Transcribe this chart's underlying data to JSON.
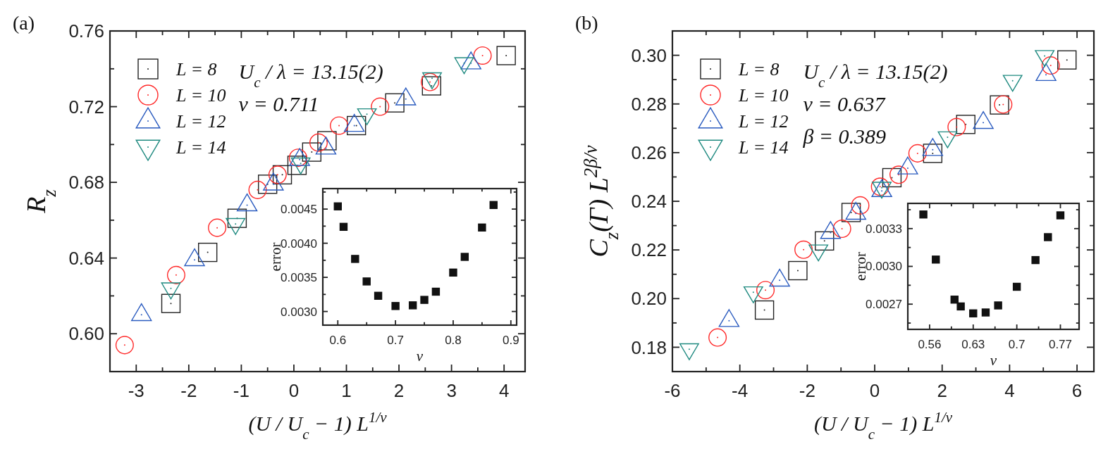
{
  "chart_data": [
    {
      "type": "scatter",
      "title": "(a)",
      "xlabel": "(U / U$_{c}$ − 1) L$^{1/ν}$",
      "ylabel": "R$_{z}$",
      "xlim": [
        -3.5,
        4.4
      ],
      "ylim": [
        0.58,
        0.76
      ],
      "xticks": [
        -3,
        {
          "value": -2.5,
          "label": null
        },
        -2,
        {
          "value": -1.5,
          "label": null
        },
        -1,
        {
          "value": -0.5,
          "label": null
        },
        0,
        {
          "value": 0.5,
          "label": null
        },
        1,
        {
          "value": 1.5,
          "label": null
        },
        2,
        {
          "value": 2.5,
          "label": null
        },
        3,
        {
          "value": 3.5,
          "label": null
        },
        4
      ],
      "yticks": [
        {
          "value": 0.6,
          "label": "0.60"
        },
        {
          "value": 0.62,
          "label": null
        },
        {
          "value": 0.64,
          "label": "0.64"
        },
        {
          "value": 0.66,
          "label": null
        },
        {
          "value": 0.68,
          "label": "0.68"
        },
        {
          "value": 0.7,
          "label": null
        },
        {
          "value": 0.72,
          "label": "0.72"
        },
        {
          "value": 0.74,
          "label": null
        },
        {
          "value": 0.76,
          "label": "0.76"
        }
      ],
      "grid": false,
      "legend": "top left",
      "annotations": [
        "U$_{c}$ / λ = 13.15(2)",
        "ν = 0.711"
      ],
      "series": [
        {
          "name": "L = 8",
          "color": "#222222",
          "marker": "square",
          "x": [
            -2.34,
            -1.64,
            -1.08,
            -0.5,
            -0.22,
            0.06,
            0.34,
            0.63,
            1.19,
            1.92,
            2.62,
            4.04
          ],
          "values": [
            0.616,
            0.643,
            0.661,
            0.679,
            0.684,
            0.689,
            0.696,
            0.702,
            0.71,
            0.722,
            0.731,
            0.747
          ]
        },
        {
          "name": "L = 10",
          "color": "#ff2a2a",
          "marker": "circle",
          "x": [
            -3.22,
            -2.24,
            -1.46,
            -0.69,
            -0.31,
            0.08,
            0.47,
            0.86,
            1.64,
            2.59,
            3.59
          ],
          "values": [
            0.594,
            0.631,
            0.656,
            0.676,
            0.684,
            0.693,
            0.701,
            0.71,
            0.72,
            0.733,
            0.747
          ]
        },
        {
          "name": "L = 12",
          "color": "#2a5bbf",
          "marker": "triangle",
          "x": [
            -2.9,
            -1.89,
            -0.89,
            -0.39,
            0.11,
            0.61,
            1.15,
            2.13,
            3.37
          ],
          "values": [
            0.61,
            0.639,
            0.668,
            0.679,
            0.692,
            0.698,
            0.71,
            0.724,
            0.743
          ]
        },
        {
          "name": "L = 14",
          "color": "#1f8a80",
          "marker": "triangle-down",
          "x": [
            -2.34,
            -1.11,
            0.13,
            1.39,
            2.63,
            3.24
          ],
          "values": [
            0.624,
            0.658,
            0.69,
            0.716,
            0.735,
            0.743
          ]
        }
      ]
    },
    {
      "type": "scatter",
      "xlabel": "ν",
      "ylabel": "error",
      "xlim": [
        0.574,
        0.91
      ],
      "ylim": [
        0.0028,
        0.0048
      ],
      "marker": "square",
      "grid": false,
      "xticks": [
        0.6,
        {
          "value": 0.65,
          "label": null
        },
        0.7,
        {
          "value": 0.75,
          "label": null
        },
        0.8,
        {
          "value": 0.85,
          "label": null
        },
        0.9
      ],
      "yticks": [
        {
          "value": 0.003,
          "label": "0.0030"
        },
        {
          "value": 0.00325,
          "label": null
        },
        {
          "value": 0.0035,
          "label": "0.0035"
        },
        {
          "value": 0.00375,
          "label": null
        },
        {
          "value": 0.004,
          "label": "0.0040"
        },
        {
          "value": 0.00425,
          "label": null
        },
        {
          "value": 0.0045,
          "label": "0.0045"
        },
        {
          "value": 0.00475,
          "label": null
        }
      ],
      "series": [
        {
          "color": "#111111",
          "x": [
            0.6,
            0.61,
            0.63,
            0.65,
            0.67,
            0.7,
            0.73,
            0.75,
            0.77,
            0.8,
            0.82,
            0.85,
            0.87
          ],
          "values": [
            0.00454,
            0.00424,
            0.00377,
            0.00344,
            0.00323,
            0.00308,
            0.00309,
            0.00317,
            0.00329,
            0.00357,
            0.0038,
            0.00423,
            0.00456
          ]
        }
      ]
    },
    {
      "type": "scatter",
      "title": "(b)",
      "xlabel": "(U / U$_{c}$ − 1) L$^{1/ν}$",
      "ylabel": "C$_{z}$(Γ) L$^{2β/ν}$",
      "xlim": [
        -6,
        6.5
      ],
      "ylim": [
        0.17,
        0.31
      ],
      "xticks": [
        -6,
        {
          "value": -5,
          "label": null
        },
        -4,
        {
          "value": -3,
          "label": null
        },
        -2,
        {
          "value": -1,
          "label": null
        },
        0,
        {
          "value": 1,
          "label": null
        },
        2,
        {
          "value": 3,
          "label": null
        },
        4,
        {
          "value": 5,
          "label": null
        },
        6
      ],
      "yticks": [
        {
          "value": 0.18,
          "label": "0.18"
        },
        {
          "value": 0.19,
          "label": null
        },
        {
          "value": 0.2,
          "label": "0.20"
        },
        {
          "value": 0.21,
          "label": null
        },
        {
          "value": 0.22,
          "label": "0.22"
        },
        {
          "value": 0.23,
          "label": null
        },
        {
          "value": 0.24,
          "label": "0.24"
        },
        {
          "value": 0.25,
          "label": null
        },
        {
          "value": 0.26,
          "label": "0.26"
        },
        {
          "value": 0.27,
          "label": null
        },
        {
          "value": 0.28,
          "label": "0.28"
        },
        {
          "value": 0.29,
          "label": null
        },
        {
          "value": 0.3,
          "label": "0.30"
        }
      ],
      "grid": false,
      "legend": "top left",
      "annotations": [
        "U$_{c}$ / λ = 13.15(2)",
        "ν = 0.637",
        "β = 0.389"
      ],
      "series": [
        {
          "name": "L = 8",
          "color": "#222222",
          "marker": "square",
          "x": [
            -3.27,
            -2.28,
            -1.49,
            -0.7,
            0.51,
            1.72,
            2.7,
            3.7,
            5.7
          ],
          "values": [
            0.1953,
            0.2115,
            0.2237,
            0.2354,
            0.2497,
            0.2597,
            0.2716,
            0.2796,
            0.2981
          ]
        },
        {
          "name": "L = 10",
          "color": "#ff2a2a",
          "marker": "circle",
          "x": [
            -4.66,
            -3.24,
            -2.11,
            -0.97,
            -0.43,
            0.16,
            0.71,
            1.27,
            2.43,
            3.81,
            5.22
          ],
          "values": [
            0.184,
            0.2035,
            0.2201,
            0.2287,
            0.2383,
            0.246,
            0.2509,
            0.2597,
            0.2705,
            0.2798,
            0.2958
          ]
        },
        {
          "name": "L = 12",
          "color": "#2a5bbf",
          "marker": "triangle",
          "x": [
            -4.32,
            -2.82,
            -1.31,
            -0.56,
            0.21,
            0.98,
            1.72,
            3.22,
            5.08
          ],
          "values": [
            0.1909,
            0.2075,
            0.2271,
            0.235,
            0.2443,
            0.2536,
            0.2612,
            0.2723,
            0.292
          ]
        },
        {
          "name": "L = 14",
          "color": "#1f8a80",
          "marker": "triangle-down",
          "x": [
            -5.5,
            -3.6,
            -1.67,
            0.21,
            2.16,
            4.09,
            5.04
          ],
          "values": [
            0.1792,
            0.2026,
            0.2198,
            0.2456,
            0.2663,
            0.2895,
            0.2997
          ]
        }
      ]
    },
    {
      "type": "scatter",
      "xlabel": "ν",
      "ylabel": "error",
      "xlim": [
        0.525,
        0.8
      ],
      "ylim": [
        0.0025,
        0.0035
      ],
      "marker": "square",
      "grid": false,
      "xticks": [
        0.56,
        {
          "value": 0.595,
          "label": null
        },
        0.63,
        {
          "value": 0.665,
          "label": null
        },
        0.7,
        {
          "value": 0.735,
          "label": null
        },
        0.77
      ],
      "yticks": [
        {
          "value": 0.00255,
          "label": null
        },
        {
          "value": 0.0027,
          "label": "0.0027"
        },
        {
          "value": 0.00285,
          "label": null
        },
        {
          "value": 0.003,
          "label": "0.0030"
        },
        {
          "value": 0.00315,
          "label": null
        },
        {
          "value": 0.0033,
          "label": "0.0033"
        },
        {
          "value": 0.00345,
          "label": null
        }
      ],
      "series": [
        {
          "color": "#111111",
          "x": [
            0.55,
            0.57,
            0.6,
            0.61,
            0.63,
            0.65,
            0.67,
            0.7,
            0.73,
            0.75,
            0.77
          ],
          "values": [
            0.003412,
            0.003054,
            0.002736,
            0.002682,
            0.002627,
            0.002634,
            0.00269,
            0.002838,
            0.00305,
            0.003232,
            0.003405
          ]
        }
      ]
    }
  ]
}
